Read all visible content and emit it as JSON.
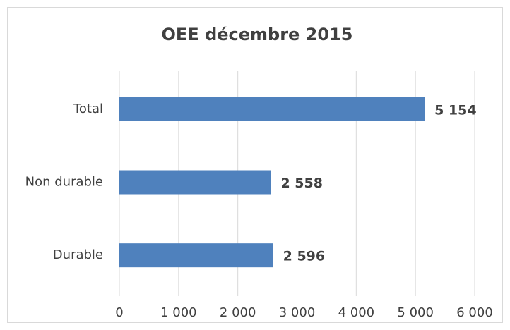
{
  "chart_data": {
    "type": "hbar",
    "title": "OEE décembre 2015",
    "categories": [
      "Total",
      "Non durable",
      "Durable"
    ],
    "values": [
      5154,
      2558,
      2596
    ],
    "value_labels": [
      "5 154",
      "2 558",
      "2 596"
    ],
    "color": "#4f81bd",
    "xlim": [
      0,
      6000
    ],
    "xticks": [
      0,
      {
        "value": 1000,
        "label": "1 000"
      },
      {
        "value": 2000,
        "label": "2 000"
      },
      {
        "value": 3000,
        "label": "3 000"
      },
      {
        "value": 4000,
        "label": "4 000"
      },
      {
        "value": 5000,
        "label": "5 000"
      },
      {
        "value": 6000,
        "label": "6 000"
      }
    ],
    "grid": true
  }
}
